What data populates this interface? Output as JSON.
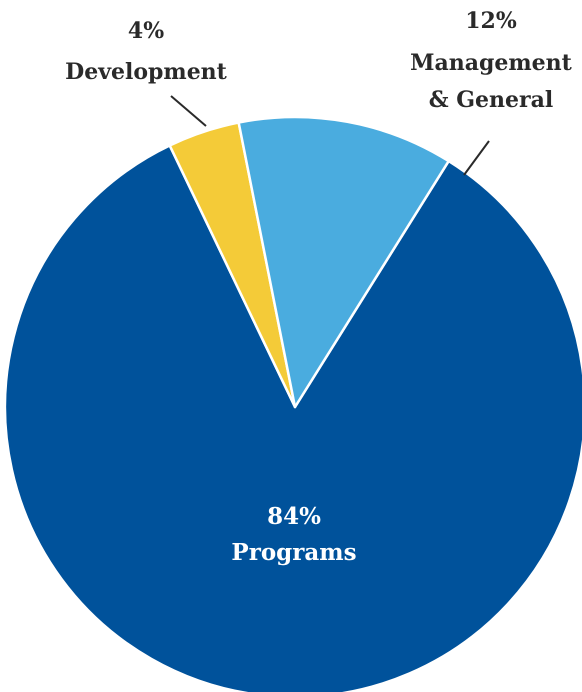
{
  "chart_data": {
    "type": "pie",
    "title": "",
    "start_angle_deg": 0,
    "direction": "counterclockwise",
    "slices": [
      {
        "key": "programs",
        "percent_label": "84%",
        "label": "Programs",
        "value": 84,
        "color": "#00529B"
      },
      {
        "key": "development",
        "percent_label": "4%",
        "label": "Development",
        "value": 4,
        "color": "#F4CB38"
      },
      {
        "key": "management",
        "percent_label": "12%",
        "label": "Management",
        "label_line2": "& General",
        "value": 12,
        "color": "#4AACDF"
      }
    ],
    "slice_border_color": "#ffffff",
    "label_color": "#2a2a2a"
  }
}
